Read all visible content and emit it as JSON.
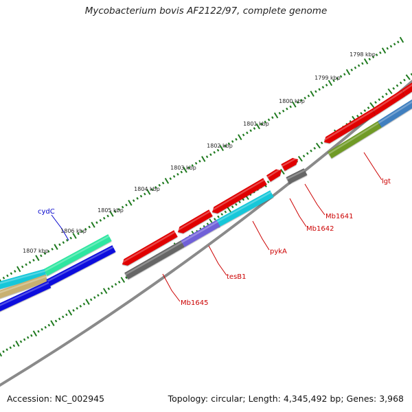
{
  "title": "Mycobacterium bovis AF2122/97, complete genome",
  "accession_text": "Accession: NC_002945",
  "summary_text": "Topology: circular; Length: 4,345,492 bp; Genes: 3,968",
  "kbp_labels": [
    "1798 kbp",
    "1799 kbp",
    "1800 kbp",
    "1801 kbp",
    "1802 kbp",
    "1803 kbp",
    "1804 kbp",
    "1805 kbp",
    "1806 kbp",
    "1807 kbp"
  ],
  "gene_labels": [
    {
      "text": "cydC",
      "color": "#0000cc"
    },
    {
      "text": "lgt",
      "color": "#cc0000"
    },
    {
      "text": "Mb1641",
      "color": "#cc0000"
    },
    {
      "text": "Mb1642",
      "color": "#cc0000"
    },
    {
      "text": "pykA",
      "color": "#cc0000"
    },
    {
      "text": "tesB1",
      "color": "#cc0000"
    },
    {
      "text": "Mb1645",
      "color": "#cc0000"
    }
  ],
  "colors": {
    "backbone": "#8a8a8a",
    "ticks": "#1f7a1f",
    "red_gene": "#e00000",
    "gray_gene": "#666666",
    "blue_gene": "#1010dd",
    "teal_gene": "#19c7d9",
    "violet_gene": "#7060d8",
    "aqua_green_gene": "#2ee6a0",
    "olive_gene": "#6f9a25",
    "steel_gene": "#3f7fbf",
    "tan_gene": "#c8b070"
  }
}
